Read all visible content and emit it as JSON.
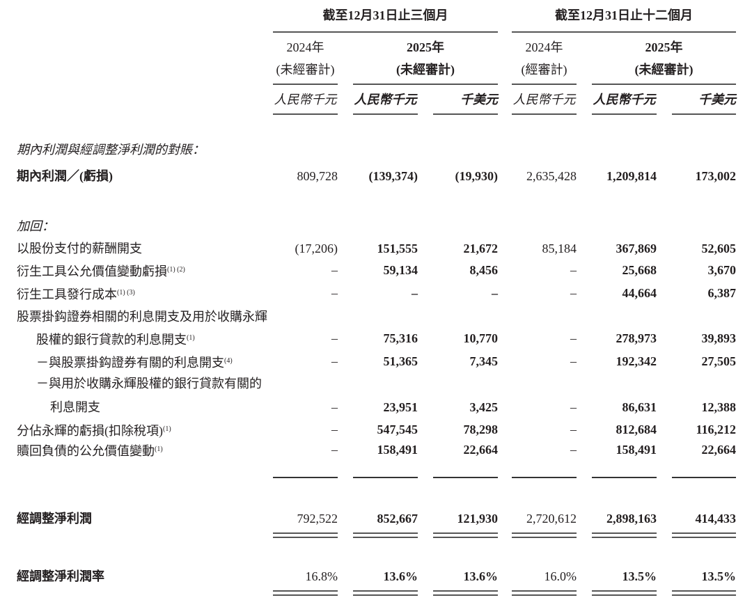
{
  "header": {
    "group_three_months": "截至12月31日止三個月",
    "group_twelve_months": "截至12月31日止十二個月",
    "columns": [
      {
        "year": "2024年",
        "audit": "(未經審計)",
        "unit": "人民幣千元"
      },
      {
        "year": "2025年",
        "audit": "(未經審計)",
        "unit": "人民幣千元"
      },
      {
        "year": "",
        "audit": "",
        "unit": "千美元"
      },
      {
        "year": "2024年",
        "audit": "(經審計)",
        "unit": "人民幣千元"
      },
      {
        "year": "2025年",
        "audit": "(未經審計)",
        "unit": "人民幣千元"
      },
      {
        "year": "",
        "audit": "",
        "unit": "千美元"
      }
    ]
  },
  "rows": [
    {
      "label": "期內利潤與經調整淨利潤的對賬：",
      "style": "section",
      "values": []
    },
    {
      "label": "期內利潤／(虧損)",
      "style": "bold-label",
      "values": [
        "809,728",
        "(139,374)",
        "(19,930)",
        "2,635,428",
        "1,209,814",
        "173,002"
      ]
    },
    {
      "label": "加回：",
      "style": "section",
      "values": []
    },
    {
      "label": "以股份支付的薪酬開支",
      "values": [
        "(17,206)",
        "151,555",
        "21,672",
        "85,184",
        "367,869",
        "52,605"
      ]
    },
    {
      "label": "衍生工具公允價值變動虧損",
      "note": "(1) (2)",
      "values": [
        "–",
        "59,134",
        "8,456",
        "–",
        "25,668",
        "3,670"
      ]
    },
    {
      "label": "衍生工具發行成本",
      "note": "(1) (3)",
      "values": [
        "–",
        "–",
        "–",
        "–",
        "44,664",
        "6,387"
      ]
    },
    {
      "label": "股票掛鈎證券相關的利息開支及用於收購永輝",
      "values": []
    },
    {
      "label": "股權的銀行貸款的利息開支",
      "note": "(1)",
      "indent": 1,
      "values": [
        "–",
        "75,316",
        "10,770",
        "–",
        "278,973",
        "39,893"
      ]
    },
    {
      "label": "－與股票掛鈎證券有關的利息開支",
      "note": "(4)",
      "indent": 1,
      "values": [
        "–",
        "51,365",
        "7,345",
        "–",
        "192,342",
        "27,505"
      ]
    },
    {
      "label": "－與用於收購永輝股權的銀行貸款有關的",
      "indent": 1,
      "values": []
    },
    {
      "label": "利息開支",
      "indent": 2,
      "values": [
        "–",
        "23,951",
        "3,425",
        "–",
        "86,631",
        "12,388"
      ]
    },
    {
      "label": "分佔永輝的虧損(扣除稅項)",
      "note": "(1)",
      "values": [
        "–",
        "547,545",
        "78,298",
        "–",
        "812,684",
        "116,212"
      ]
    },
    {
      "label": "贖回負債的公允價值變動",
      "note": "(1)",
      "values": [
        "–",
        "158,491",
        "22,664",
        "–",
        "158,491",
        "22,664"
      ]
    },
    {
      "label": "經調整淨利潤",
      "style": "bold-label",
      "values": [
        "792,522",
        "852,667",
        "121,930",
        "2,720,612",
        "2,898,163",
        "414,433"
      ]
    },
    {
      "label": "經調整淨利潤率",
      "style": "bold-label",
      "values": [
        "16.8%",
        "13.6%",
        "13.6%",
        "16.0%",
        "13.5%",
        "13.5%"
      ]
    }
  ]
}
